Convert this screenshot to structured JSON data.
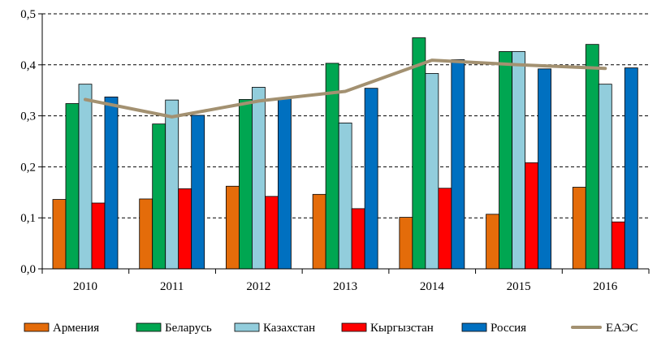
{
  "chart_data": {
    "type": "bar",
    "title": "",
    "xlabel": "",
    "ylabel": "",
    "categories": [
      "2010",
      "2011",
      "2012",
      "2013",
      "2014",
      "2015",
      "2016"
    ],
    "ylim": [
      0,
      0.5
    ],
    "yticks": [
      {
        "value": 0.0,
        "label": "0,0"
      },
      {
        "value": 0.1,
        "label": "0,1"
      },
      {
        "value": 0.2,
        "label": "0,2"
      },
      {
        "value": 0.3,
        "label": "0,3"
      },
      {
        "value": 0.4,
        "label": "0,4"
      },
      {
        "value": 0.5,
        "label": "0,5"
      }
    ],
    "grid": "horizontal dashed",
    "legend_position": "bottom",
    "series": [
      {
        "name": "Армения",
        "kind": "bar",
        "color": "#E46C0A",
        "values": [
          0.136,
          0.137,
          0.162,
          0.146,
          0.101,
          0.107,
          0.16
        ]
      },
      {
        "name": "Беларусь",
        "kind": "bar",
        "color": "#00A651",
        "values": [
          0.324,
          0.284,
          0.332,
          0.403,
          0.453,
          0.426,
          0.44
        ]
      },
      {
        "name": "Казахстан",
        "kind": "bar",
        "color": "#92CDDC",
        "values": [
          0.362,
          0.331,
          0.356,
          0.286,
          0.383,
          0.426,
          0.362
        ]
      },
      {
        "name": "Кыргызстан",
        "kind": "bar",
        "color": "#FF0000",
        "values": [
          0.129,
          0.157,
          0.142,
          0.118,
          0.158,
          0.208,
          0.092
        ]
      },
      {
        "name": "Россия",
        "kind": "bar",
        "color": "#0070C0",
        "values": [
          0.337,
          0.301,
          0.335,
          0.354,
          0.41,
          0.392,
          0.394
        ]
      },
      {
        "name": "ЕАЭС",
        "kind": "line",
        "color": "#A39171",
        "values": [
          0.332,
          0.298,
          0.329,
          0.348,
          0.409,
          0.4,
          0.393
        ]
      }
    ]
  }
}
